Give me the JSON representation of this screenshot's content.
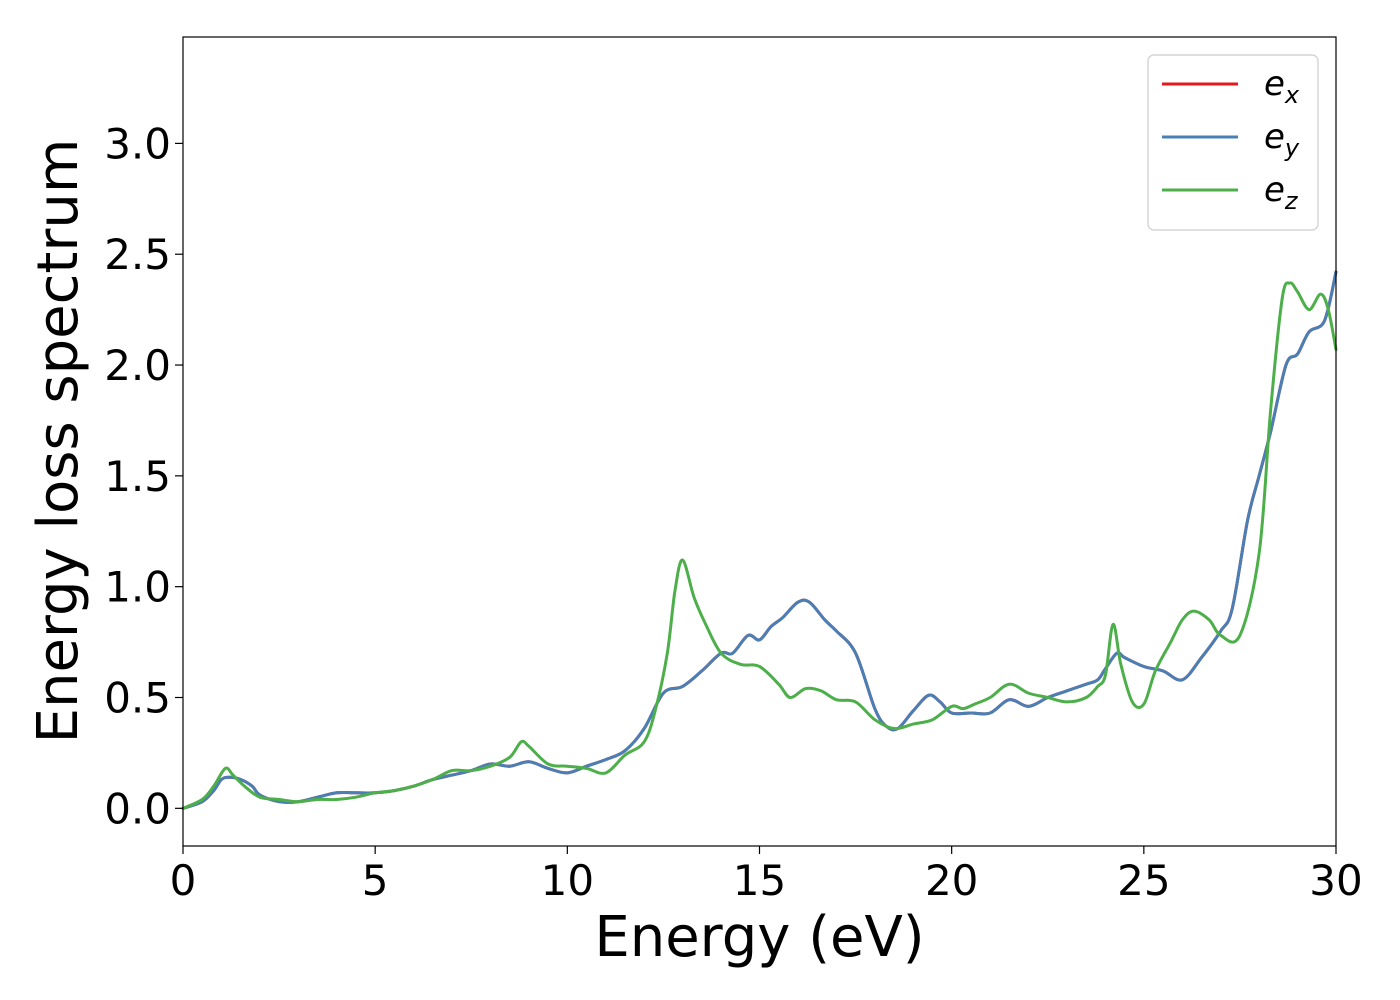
{
  "chart_data": {
    "type": "line",
    "title": "",
    "xlabel": "Energy (eV)",
    "ylabel": "Energy loss spectrum",
    "xlim": [
      0,
      30
    ],
    "ylim": [
      -0.17,
      3.48
    ],
    "xticks": [
      "0",
      "5",
      "10",
      "15",
      "20",
      "25",
      "30"
    ],
    "yticks": [
      "0.0",
      "0.5",
      "1.0",
      "1.5",
      "2.0",
      "2.5",
      "3.0"
    ],
    "grid": false,
    "legend_position": "top-right",
    "series": [
      {
        "name": "e_x",
        "legend_base": "e",
        "legend_sub": "x",
        "color": "#e41a1c",
        "x": [
          0,
          0.5,
          0.8,
          1.0,
          1.2,
          1.5,
          1.8,
          2.0,
          2.5,
          3.0,
          3.5,
          4.0,
          4.5,
          5.0,
          5.5,
          6.0,
          6.5,
          7.0,
          7.5,
          8.0,
          8.5,
          9.0,
          9.5,
          10.0,
          10.5,
          11.0,
          11.5,
          12.0,
          12.5,
          13.0,
          13.5,
          14.0,
          14.3,
          14.7,
          15.0,
          15.3,
          15.6,
          16.0,
          16.3,
          16.7,
          17.0,
          17.5,
          18.0,
          18.3,
          18.6,
          19.0,
          19.4,
          19.7,
          20.0,
          20.5,
          21.0,
          21.5,
          22.0,
          22.5,
          23.0,
          23.5,
          23.8,
          24.0,
          24.3,
          24.5,
          25.0,
          25.5,
          26.0,
          26.5,
          27.0,
          27.3,
          27.7,
          28.0,
          28.3,
          28.7,
          29.0,
          29.3,
          29.7,
          30.0
        ],
        "y": [
          0,
          0.03,
          0.08,
          0.13,
          0.14,
          0.13,
          0.1,
          0.06,
          0.03,
          0.03,
          0.05,
          0.07,
          0.07,
          0.07,
          0.08,
          0.1,
          0.13,
          0.15,
          0.17,
          0.2,
          0.19,
          0.21,
          0.18,
          0.16,
          0.19,
          0.22,
          0.26,
          0.36,
          0.52,
          0.55,
          0.62,
          0.7,
          0.7,
          0.78,
          0.76,
          0.82,
          0.86,
          0.93,
          0.93,
          0.85,
          0.8,
          0.7,
          0.45,
          0.37,
          0.36,
          0.44,
          0.51,
          0.48,
          0.43,
          0.43,
          0.43,
          0.49,
          0.46,
          0.5,
          0.53,
          0.56,
          0.58,
          0.63,
          0.7,
          0.68,
          0.64,
          0.62,
          0.58,
          0.68,
          0.8,
          0.9,
          1.3,
          1.5,
          1.7,
          2.0,
          2.05,
          2.15,
          2.2,
          2.42
        ]
      },
      {
        "name": "e_y",
        "legend_base": "e",
        "legend_sub": "y",
        "color": "#4a7fb5",
        "x": [
          0,
          0.5,
          0.8,
          1.0,
          1.2,
          1.5,
          1.8,
          2.0,
          2.5,
          3.0,
          3.5,
          4.0,
          4.5,
          5.0,
          5.5,
          6.0,
          6.5,
          7.0,
          7.5,
          8.0,
          8.5,
          9.0,
          9.5,
          10.0,
          10.5,
          11.0,
          11.5,
          12.0,
          12.5,
          13.0,
          13.5,
          14.0,
          14.3,
          14.7,
          15.0,
          15.3,
          15.6,
          16.0,
          16.3,
          16.7,
          17.0,
          17.5,
          18.0,
          18.3,
          18.6,
          19.0,
          19.4,
          19.7,
          20.0,
          20.5,
          21.0,
          21.5,
          22.0,
          22.5,
          23.0,
          23.5,
          23.8,
          24.0,
          24.3,
          24.5,
          25.0,
          25.5,
          26.0,
          26.5,
          27.0,
          27.3,
          27.7,
          28.0,
          28.3,
          28.7,
          29.0,
          29.3,
          29.7,
          30.0
        ],
        "y": [
          0,
          0.03,
          0.08,
          0.13,
          0.14,
          0.13,
          0.1,
          0.06,
          0.03,
          0.03,
          0.05,
          0.07,
          0.07,
          0.07,
          0.08,
          0.1,
          0.13,
          0.15,
          0.17,
          0.2,
          0.19,
          0.21,
          0.18,
          0.16,
          0.19,
          0.22,
          0.26,
          0.36,
          0.52,
          0.55,
          0.62,
          0.7,
          0.7,
          0.78,
          0.76,
          0.82,
          0.86,
          0.93,
          0.93,
          0.85,
          0.8,
          0.7,
          0.45,
          0.37,
          0.36,
          0.44,
          0.51,
          0.48,
          0.43,
          0.43,
          0.43,
          0.49,
          0.46,
          0.5,
          0.53,
          0.56,
          0.58,
          0.63,
          0.7,
          0.68,
          0.64,
          0.62,
          0.58,
          0.68,
          0.8,
          0.9,
          1.3,
          1.5,
          1.7,
          2.0,
          2.05,
          2.15,
          2.2,
          2.42
        ]
      },
      {
        "name": "e_z",
        "legend_base": "e",
        "legend_sub": "z",
        "color": "#4daf4a",
        "x": [
          0,
          0.5,
          0.8,
          1.1,
          1.3,
          1.6,
          2.0,
          2.5,
          3.0,
          3.5,
          4.0,
          4.5,
          5.0,
          5.5,
          6.0,
          6.5,
          7.0,
          7.5,
          8.0,
          8.5,
          8.8,
          9.0,
          9.5,
          10.0,
          10.5,
          11.0,
          11.5,
          12.0,
          12.3,
          12.6,
          12.8,
          13.0,
          13.3,
          13.6,
          14.0,
          14.5,
          15.0,
          15.5,
          15.8,
          16.2,
          16.6,
          17.0,
          17.5,
          18.0,
          18.5,
          19.0,
          19.5,
          20.0,
          20.3,
          20.6,
          21.0,
          21.5,
          22.0,
          22.5,
          23.0,
          23.5,
          23.8,
          24.0,
          24.2,
          24.4,
          24.7,
          25.0,
          25.3,
          25.7,
          26.0,
          26.3,
          26.7,
          27.0,
          27.5,
          28.0,
          28.3,
          28.6,
          28.8,
          29.0,
          29.3,
          29.6,
          29.8,
          30.0
        ],
        "y": [
          0,
          0.04,
          0.1,
          0.18,
          0.15,
          0.1,
          0.05,
          0.04,
          0.03,
          0.04,
          0.04,
          0.05,
          0.07,
          0.08,
          0.1,
          0.13,
          0.17,
          0.17,
          0.19,
          0.23,
          0.3,
          0.28,
          0.2,
          0.19,
          0.18,
          0.16,
          0.24,
          0.3,
          0.45,
          0.7,
          0.98,
          1.12,
          0.95,
          0.83,
          0.7,
          0.65,
          0.64,
          0.56,
          0.5,
          0.54,
          0.53,
          0.49,
          0.48,
          0.4,
          0.36,
          0.38,
          0.4,
          0.46,
          0.45,
          0.47,
          0.5,
          0.56,
          0.52,
          0.5,
          0.48,
          0.5,
          0.55,
          0.6,
          0.83,
          0.65,
          0.48,
          0.47,
          0.62,
          0.75,
          0.85,
          0.89,
          0.85,
          0.78,
          0.78,
          1.15,
          1.8,
          2.3,
          2.37,
          2.33,
          2.25,
          2.32,
          2.25,
          2.07
        ]
      }
    ]
  }
}
